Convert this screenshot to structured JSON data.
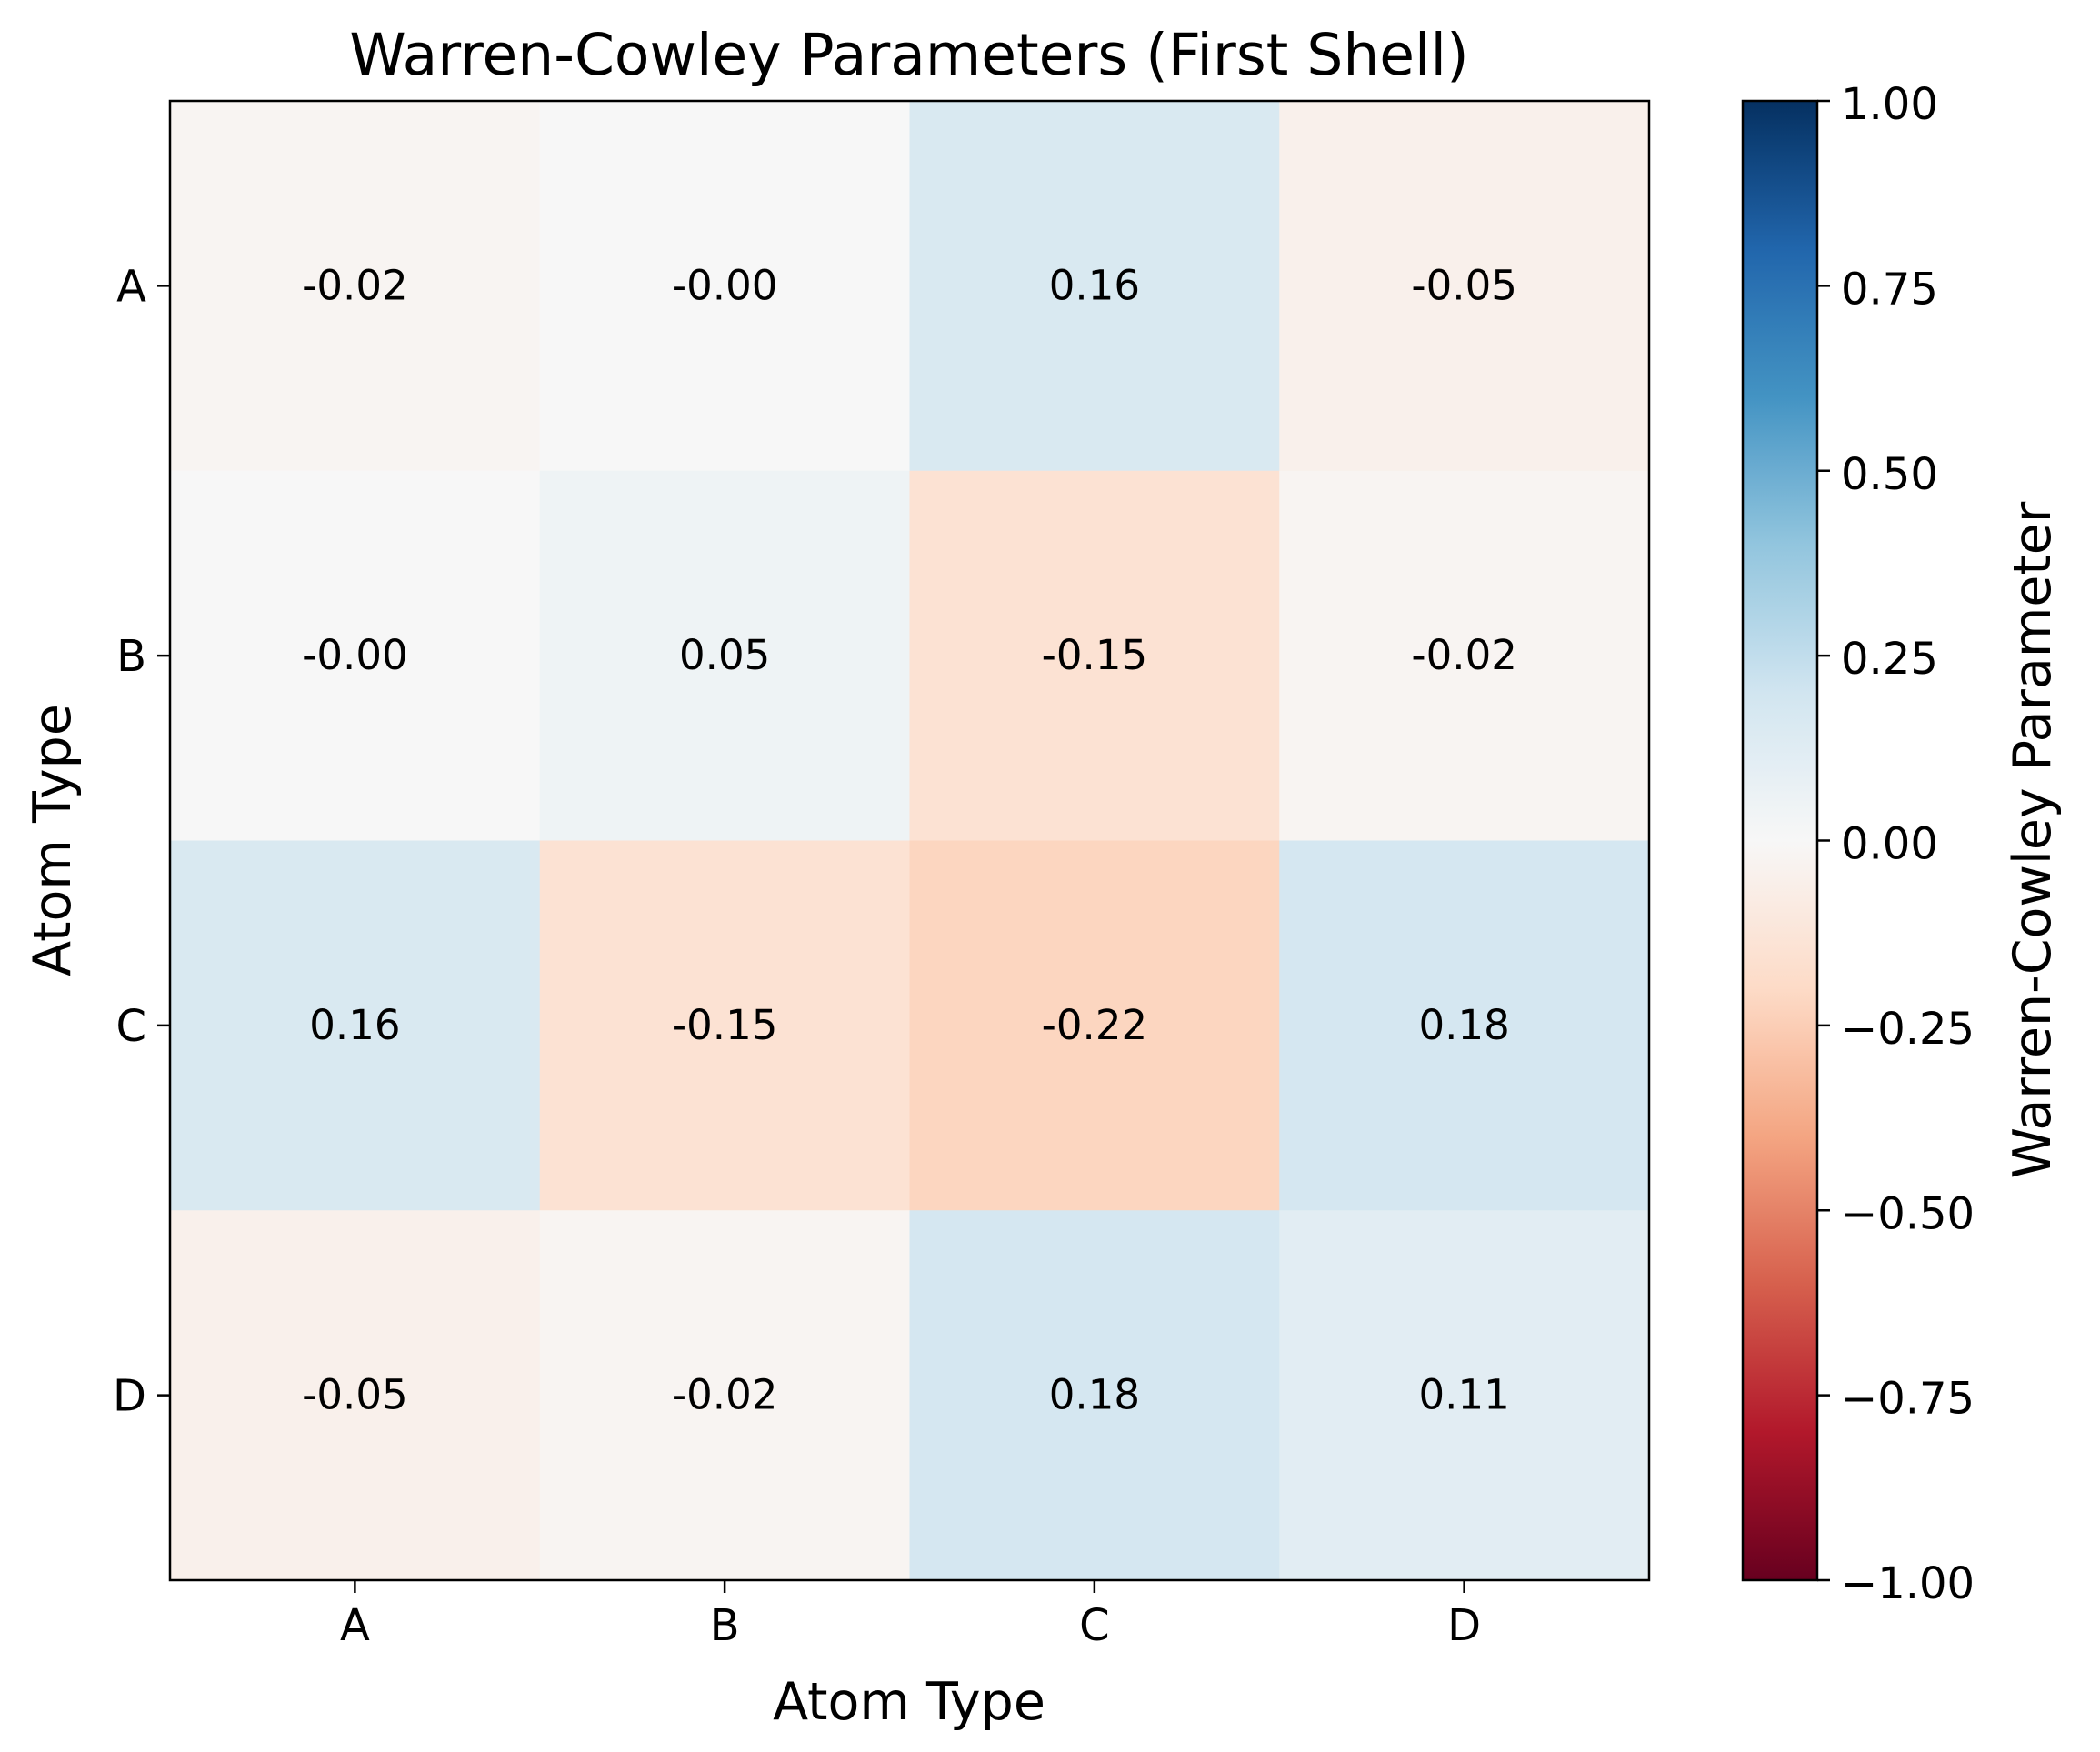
{
  "chart_data": {
    "type": "heatmap",
    "title": "Warren-Cowley Parameters (First Shell)",
    "xlabel": "Atom Type",
    "ylabel": "Atom Type",
    "x_categories": [
      "A",
      "B",
      "C",
      "D"
    ],
    "y_categories": [
      "A",
      "B",
      "C",
      "D"
    ],
    "values": [
      [
        -0.02,
        -0.0,
        0.16,
        -0.05
      ],
      [
        -0.0,
        0.05,
        -0.15,
        -0.02
      ],
      [
        0.16,
        -0.15,
        -0.22,
        0.18
      ],
      [
        -0.05,
        -0.02,
        0.18,
        0.11
      ]
    ],
    "cell_labels": [
      [
        "-0.02",
        "-0.00",
        "0.16",
        "-0.05"
      ],
      [
        "-0.00",
        "0.05",
        "-0.15",
        "-0.02"
      ],
      [
        "0.16",
        "-0.15",
        "-0.22",
        "0.18"
      ],
      [
        "-0.05",
        "-0.02",
        "0.18",
        "0.11"
      ]
    ],
    "colormap": "RdBu",
    "vmin": -1.0,
    "vmax": 1.0,
    "colorbar": {
      "label": "Warren-Cowley Parameter",
      "ticks": [
        1.0,
        0.75,
        0.5,
        0.25,
        0.0,
        -0.25,
        -0.5,
        -0.75,
        -1.0
      ],
      "tick_labels": [
        "1.00",
        "0.75",
        "0.50",
        "0.25",
        "0.00",
        "−0.25",
        "−0.50",
        "−0.75",
        "−1.00"
      ]
    },
    "grid": false
  }
}
